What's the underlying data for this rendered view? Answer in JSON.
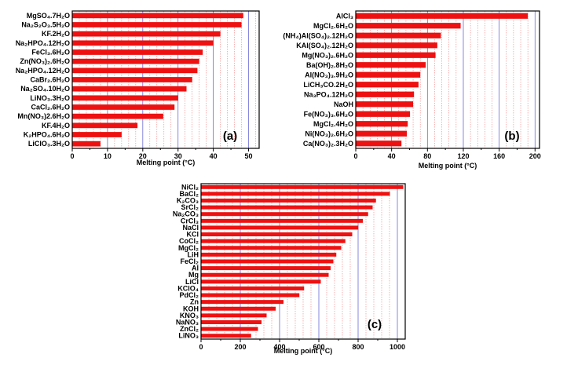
{
  "colors": {
    "bar": "#ee1111",
    "major_grid": "#6a6ad6",
    "minor_grid": "#f08080",
    "frame": "#000000"
  },
  "chart_data": [
    {
      "type": "bar",
      "orientation": "horizontal",
      "panel_label": "(a)",
      "xlabel": "Melting point (°C)",
      "xlim": [
        0,
        53
      ],
      "xticks": [
        "0",
        "10",
        "20",
        "30",
        "40",
        "50"
      ],
      "categories": [
        "MgSO₄.7H₂O",
        "Na₂S₂O₃.5H₂O",
        "KF.2H₂O",
        "Na₂HPO₄.12H₂O",
        "FeCl₃.6H₂O",
        "Zn(NO₃)₂.6H₂O",
        "Na₂HPO₄.12H₂O",
        "CaBr₂.6H₂O",
        "Na₂SO₄.10H₂O",
        "LiNO₃.3H₂O",
        "CaCl₂.6H₂O",
        "Mn(NO₃)2.6H₂O",
        "KF.4H₂O",
        "K₂HPO₄.6H₂O",
        "LiClO₃.3H₂O"
      ],
      "values": [
        48.5,
        48,
        42,
        40,
        37,
        36,
        35.5,
        34,
        32.4,
        30,
        29,
        25.8,
        18.5,
        14,
        8
      ],
      "grid": true
    },
    {
      "type": "bar",
      "orientation": "horizontal",
      "panel_label": "(b)",
      "xlabel": "Melting point (°C)",
      "xlim": [
        0,
        205
      ],
      "xticks": [
        "0",
        "40",
        "80",
        "120",
        "160",
        "200"
      ],
      "categories": [
        "AlCl₃",
        "MgCl₂.6H₂O",
        "(NH₄)Al(SO₄)₂.12H₂O",
        "KAl(SO₄)₂.12H₂O",
        "Mg(NO₃)₂.6H₂O",
        "Ba(OH)₂.8H₂O",
        "Al(NO₃)₃.9H₂O",
        "LiCH₃CO.2H₂O",
        "Na₃PO₄.12H₂O",
        "NaOH",
        "Fe(NO₃)₃.6H₂O",
        "MgCl₂.4H₂O",
        "Ni(NO₃)₂.6H₂O",
        "Ca(NO₃)₂.3H₂O"
      ],
      "values": [
        192,
        117,
        95,
        91,
        89,
        78,
        72,
        70,
        65,
        64,
        60.5,
        58,
        57,
        51
      ],
      "grid": true
    },
    {
      "type": "bar",
      "orientation": "horizontal",
      "panel_label": "(c)",
      "xlabel": "Melting point (°C)",
      "xlim": [
        0,
        1040
      ],
      "xticks": [
        "0",
        "200",
        "400",
        "600",
        "800",
        "1000"
      ],
      "categories": [
        "NiCl₂",
        "BaCl₂",
        "K₂CO₃",
        "SrCl₂",
        "Na₂CO₃",
        "CrCl₃",
        "NaCl",
        "KCl",
        "CoCl₂",
        "MgCl₂",
        "LiH",
        "FeCl₂",
        "Al",
        "Mg",
        "LiCl",
        "KClO₄",
        "PdCl₂",
        "Zn",
        "KOH",
        "KNO₃",
        "NaNO₃",
        "ZnCl₂",
        "LiNO₃"
      ],
      "values": [
        1030,
        962,
        891,
        874,
        851,
        824,
        801,
        770,
        735,
        714,
        689,
        674,
        660,
        650,
        610,
        525,
        501,
        420,
        380,
        334,
        308,
        290,
        255
      ],
      "grid": true
    }
  ]
}
